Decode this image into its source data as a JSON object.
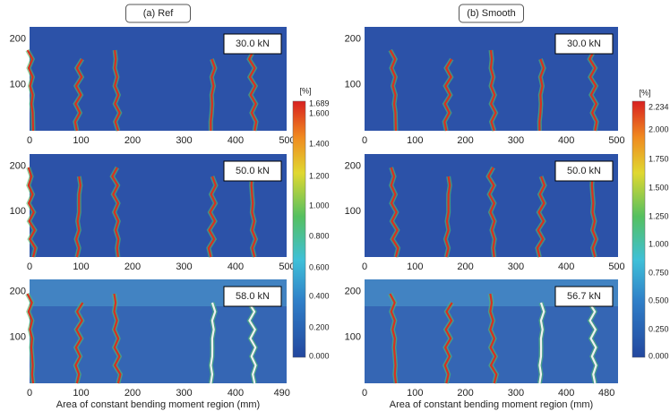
{
  "panels": [
    {
      "title": "(a) Ref",
      "plots": [
        {
          "load": "30.0 kN",
          "xticks": [
            0,
            100,
            200,
            300,
            400,
            500
          ],
          "yticks": [
            100,
            200
          ]
        },
        {
          "load": "50.0 kN",
          "xticks": [
            0,
            100,
            200,
            300,
            400,
            500
          ],
          "yticks": [
            100,
            200
          ]
        },
        {
          "load": "58.0 kN",
          "xticks": [
            0,
            100,
            200,
            300,
            400,
            490
          ],
          "yticks": [
            100,
            200
          ]
        }
      ],
      "xlabel": "Area of constant bending moment region (mm)",
      "colorbar": {
        "unit": "[%]",
        "max_label": "1.689",
        "ticks": [
          "1.600",
          "1.400",
          "1.200",
          "1.000",
          "0.800",
          "0.600",
          "0.400",
          "0.200",
          "0.000"
        ]
      }
    },
    {
      "title": "(b) Smooth",
      "plots": [
        {
          "load": "30.0 kN",
          "xticks": [
            0,
            100,
            200,
            300,
            400,
            500
          ],
          "yticks": [
            100,
            200
          ]
        },
        {
          "load": "50.0 kN",
          "xticks": [
            0,
            100,
            200,
            300,
            400,
            500
          ],
          "yticks": [
            100,
            200
          ]
        },
        {
          "load": "56.7 kN",
          "xticks": [
            0,
            100,
            200,
            300,
            400,
            480
          ],
          "yticks": [
            100,
            200
          ]
        }
      ],
      "xlabel": "Area of constant bending moment region (mm)",
      "colorbar": {
        "unit": "[%]",
        "max_label": "2.234",
        "ticks": [
          "2.000",
          "1.750",
          "1.500",
          "1.250",
          "1.000",
          "0.750",
          "0.500",
          "0.250",
          "0.000"
        ]
      }
    }
  ]
}
